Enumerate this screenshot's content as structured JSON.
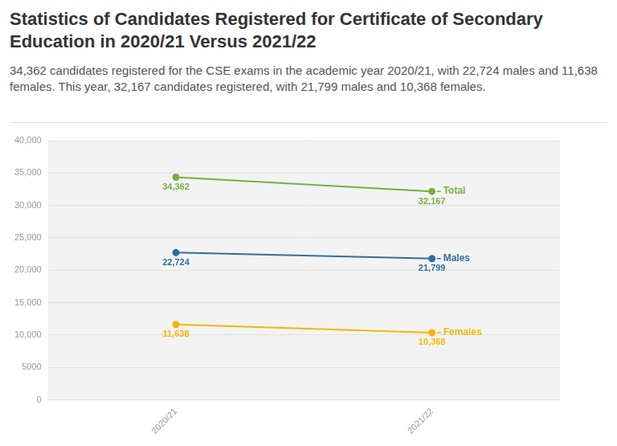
{
  "chart_data": {
    "type": "line",
    "title": "Statistics of Candidates Registered for Certificate of Secondary Education in 2020/21 Versus 2021/22",
    "subtitle": "34,362 candidates registered for the CSE exams in the academic year 2020/21, with 22,724 males and 11,638 females. This year, 32,167 candidates registered, with 21,799 males and 10,368 females.",
    "categories": [
      "2020/21",
      "2021/22"
    ],
    "series": [
      {
        "name": "Total",
        "color": "#76b041",
        "values": [
          34362,
          32167
        ],
        "value_labels": [
          "34,362",
          "32,167"
        ]
      },
      {
        "name": "Males",
        "color": "#2f6f9f",
        "values": [
          22724,
          21799
        ],
        "value_labels": [
          "22,724",
          "21,799"
        ]
      },
      {
        "name": "Females",
        "color": "#f2b705",
        "values": [
          11638,
          10368
        ],
        "value_labels": [
          "11,638",
          "10,368"
        ]
      }
    ],
    "ylim": [
      0,
      40000
    ],
    "yticks": [
      0,
      5000,
      {
        "value": 10000,
        "label": "10,000"
      },
      {
        "value": 15000,
        "label": "15,000"
      },
      {
        "value": 20000,
        "label": "20,000"
      },
      {
        "value": 25000,
        "label": "25,000"
      },
      {
        "value": 30000,
        "label": "30,000"
      },
      {
        "value": 35000,
        "label": "35,000"
      },
      {
        "value": 40000,
        "label": "40,000"
      }
    ],
    "grid": true,
    "data_labels": true,
    "marker": "circle"
  }
}
